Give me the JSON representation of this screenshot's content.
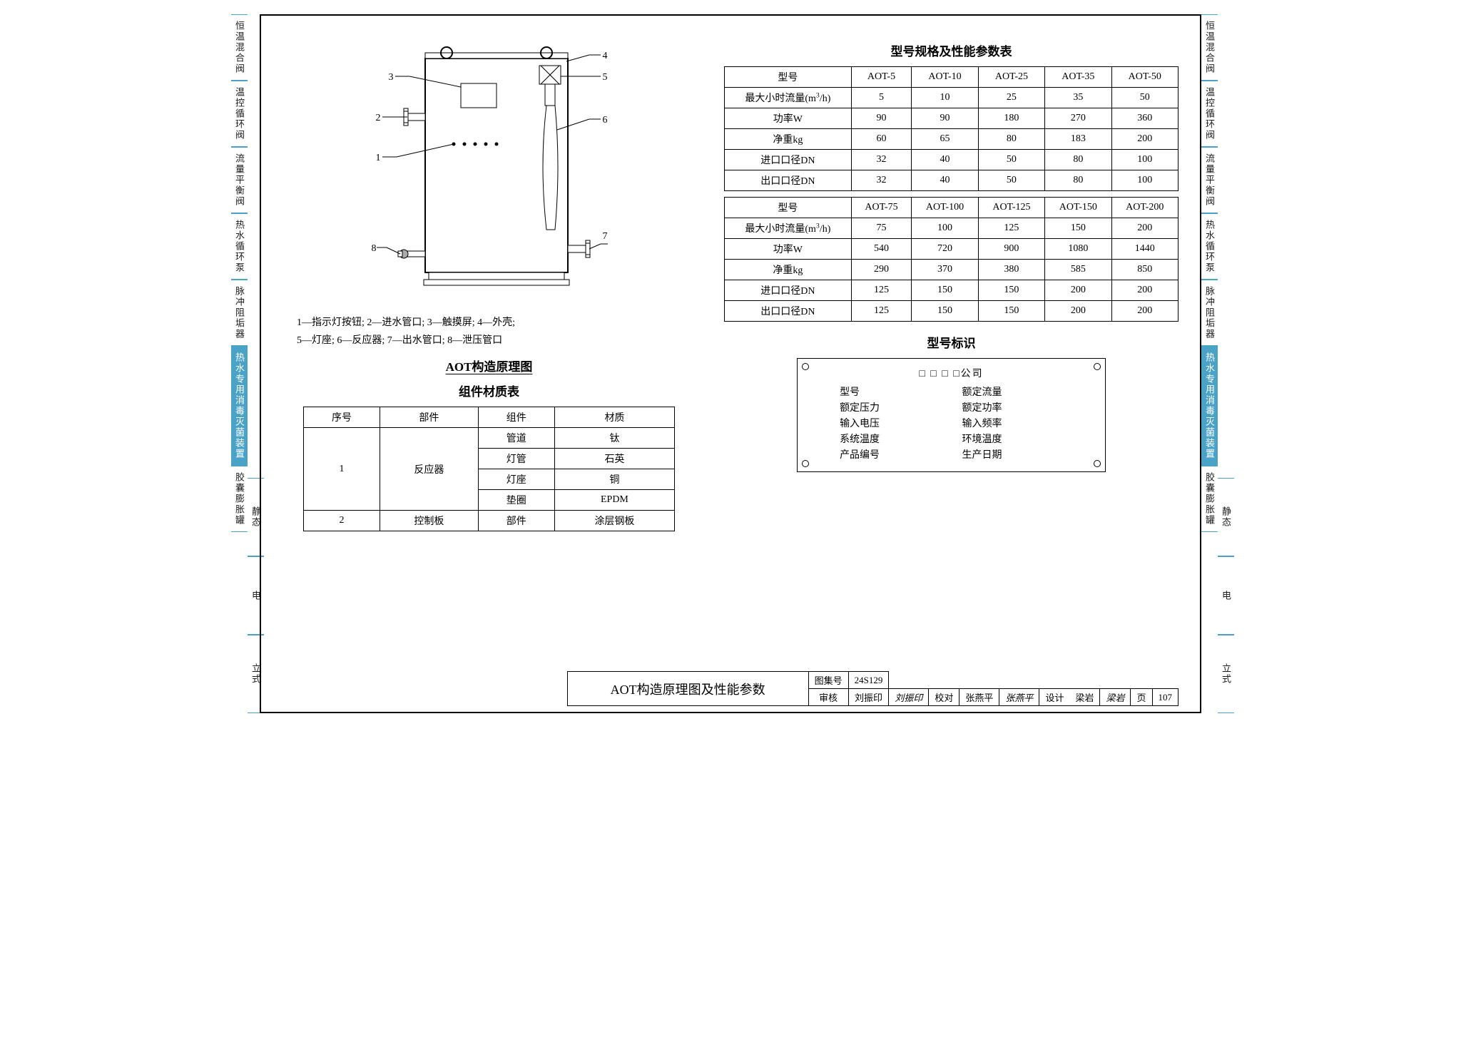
{
  "side_tabs": {
    "col1": [
      {
        "label": "恒温混合阀",
        "active": false
      },
      {
        "label": "温控循环阀",
        "active": false
      },
      {
        "label": "流量平衡阀",
        "active": false
      },
      {
        "label": "热水循环泵",
        "active": false
      },
      {
        "label": "脉冲阻垢器",
        "active": false
      },
      {
        "label": "热水专用消毒灭菌装置",
        "active": true
      },
      {
        "label": "胶囊膨胀罐",
        "active": false
      }
    ],
    "col2": [
      {
        "label": "静态",
        "active": false
      },
      {
        "label": "电",
        "active": false
      },
      {
        "label": "立式",
        "active": false
      }
    ]
  },
  "diagram": {
    "callouts": [
      "1",
      "2",
      "3",
      "4",
      "5",
      "6",
      "7",
      "8"
    ],
    "legend_line1": "1—指示灯按钮; 2—进水管口; 3—触摸屏; 4—外壳;",
    "legend_line2": "5—灯座; 6—反应器; 7—出水管口; 8—泄压管口",
    "title": "AOT构造原理图",
    "stroke": "#000000",
    "fill": "#ffffff"
  },
  "material_table": {
    "title": "组件材质表",
    "headers": [
      "序号",
      "部件",
      "组件",
      "材质"
    ],
    "rows": [
      {
        "no": "1",
        "part": "反应器",
        "rowspan": 4,
        "comp": "管道",
        "mat": "钛"
      },
      {
        "comp": "灯管",
        "mat": "石英"
      },
      {
        "comp": "灯座",
        "mat": "铜"
      },
      {
        "comp": "垫圈",
        "mat": "EPDM"
      },
      {
        "no": "2",
        "part": "控制板",
        "rowspan": 1,
        "comp": "部件",
        "mat": "涂层钢板"
      }
    ]
  },
  "spec_table": {
    "title": "型号规格及性能参数表",
    "row_headers": [
      "型号",
      "最大小时流量(m³/h)",
      "功率W",
      "净重kg",
      "进口口径DN",
      "出口口径DN"
    ],
    "block1": {
      "models": [
        "AOT-5",
        "AOT-10",
        "AOT-25",
        "AOT-35",
        "AOT-50"
      ],
      "flow": [
        "5",
        "10",
        "25",
        "35",
        "50"
      ],
      "power": [
        "90",
        "90",
        "180",
        "270",
        "360"
      ],
      "weight": [
        "60",
        "65",
        "80",
        "183",
        "200"
      ],
      "in_dn": [
        "32",
        "40",
        "50",
        "80",
        "100"
      ],
      "out_dn": [
        "32",
        "40",
        "50",
        "80",
        "100"
      ]
    },
    "block2": {
      "models": [
        "AOT-75",
        "AOT-100",
        "AOT-125",
        "AOT-150",
        "AOT-200"
      ],
      "flow": [
        "75",
        "100",
        "125",
        "150",
        "200"
      ],
      "power": [
        "540",
        "720",
        "900",
        "1080",
        "1440"
      ],
      "weight": [
        "290",
        "370",
        "380",
        "585",
        "850"
      ],
      "in_dn": [
        "125",
        "150",
        "150",
        "200",
        "200"
      ],
      "out_dn": [
        "125",
        "150",
        "150",
        "200",
        "200"
      ]
    }
  },
  "nameplate": {
    "title": "型号标识",
    "company": "□ □ □ □公司",
    "fields_left": [
      "型号",
      "额定压力",
      "输入电压",
      "系统温度",
      "产品编号"
    ],
    "fields_right": [
      "额定流量",
      "额定功率",
      "输入频率",
      "环境温度",
      "生产日期"
    ]
  },
  "title_block": {
    "main": "AOT构造原理图及性能参数",
    "set_label": "图集号",
    "set_no": "24S129",
    "page_label": "页",
    "page_no": "107",
    "roles": {
      "review": "审核",
      "reviewer": "刘振印",
      "reviewer_sig": "刘振印",
      "check": "校对",
      "checker": "张燕平",
      "checker_sig": "张燕平",
      "design": "设计",
      "designer": "梁岩",
      "designer_sig": "梁岩"
    }
  }
}
